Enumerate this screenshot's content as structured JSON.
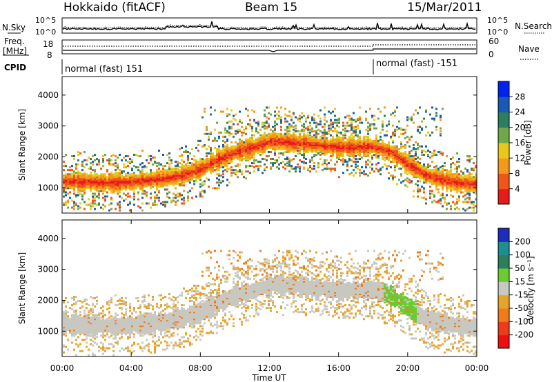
{
  "header": {
    "station": "Hokkaido (fitACF)",
    "beam": "Beam 15",
    "date": "15/Mar/2011"
  },
  "noise_panel": {
    "left_label": "N.Sky",
    "right_label": "N.Search",
    "left_ticks": [
      "10^5",
      "10^0"
    ],
    "right_ticks": [
      "10^5",
      "10^0"
    ]
  },
  "freq_panel": {
    "left_label": "Freq.",
    "left_unit": "[MHz]",
    "right_label": "Nave",
    "left_ticks": [
      "18",
      "8"
    ],
    "right_ticks": [
      "60",
      "0"
    ]
  },
  "cpid_panel": {
    "label": "CPID",
    "segments": [
      {
        "name": "normal (fast) 151",
        "start_hour": 0
      },
      {
        "name": "normal (fast) -151",
        "start_hour": 18
      }
    ]
  },
  "chart_data": [
    {
      "type": "heatmap",
      "name": "power",
      "xlabel": "",
      "ylabel": "Slant Range [km]",
      "xlim": [
        0,
        24
      ],
      "ylim": [
        180,
        4600
      ],
      "yticks": [
        "4000",
        "3000",
        "2000",
        "1000"
      ],
      "ytick_values": [
        4000,
        3000,
        2000,
        1000
      ],
      "colorbar": {
        "label": "Power [dB]",
        "ticks": [
          "28",
          "24",
          "20",
          "16",
          "12",
          "8",
          "4"
        ],
        "colors": [
          "#0022ee",
          "#1a5ab4",
          "#2e7d5c",
          "#6fa84c",
          "#e9c81c",
          "#f39a1a",
          "#f0561a",
          "#e81a1a"
        ]
      },
      "bands": [
        {
          "x_hours": [
            0,
            1.5,
            3,
            4,
            5,
            6,
            7,
            8,
            9,
            10,
            11,
            12,
            14,
            16,
            18,
            19,
            20,
            21,
            22,
            23,
            24
          ],
          "center_km": [
            1200,
            1180,
            1150,
            1180,
            1240,
            1300,
            1420,
            1600,
            1900,
            2150,
            2280,
            2500,
            2420,
            2300,
            2320,
            2150,
            1750,
            1400,
            1250,
            1150,
            1100
          ],
          "width_km": 280,
          "level": 0.88
        }
      ]
    },
    {
      "type": "heatmap",
      "name": "velocity",
      "xlabel": "Time UT",
      "ylabel": "Slant Range [km]",
      "xlim": [
        0,
        24
      ],
      "ylim": [
        180,
        4600
      ],
      "yticks": [
        "4000",
        "3000",
        "2000",
        "1000"
      ],
      "ytick_values": [
        4000,
        3000,
        2000,
        1000
      ],
      "xticks": [
        "00:00",
        "04:00",
        "08:00",
        "12:00",
        "16:00",
        "20:00",
        "00:00"
      ],
      "xtick_values": [
        0,
        4,
        8,
        12,
        16,
        20,
        24
      ],
      "colorbar": {
        "label": "Velocity [m s⁻¹]",
        "ticks": [
          "200",
          "100",
          "50",
          "15",
          "-15",
          "-50",
          "-100",
          "-200"
        ],
        "colors": [
          "#1c2cbc",
          "#1e8e8e",
          "#2e7d5c",
          "#69cc31",
          "#c8c8c0",
          "#e6a52a",
          "#f27a1a",
          "#ef3b1a",
          "#ee1010"
        ]
      }
    }
  ]
}
